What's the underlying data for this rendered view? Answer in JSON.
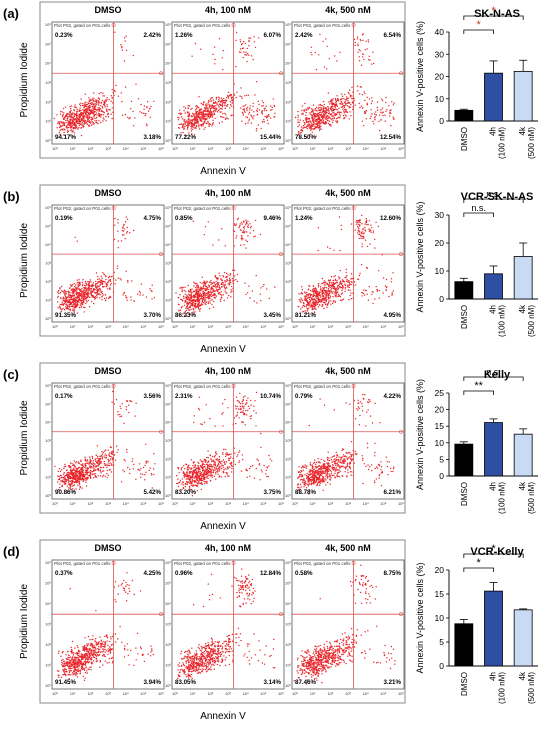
{
  "panels": [
    {
      "label": "(a)",
      "flow": {
        "ylabel": "Propidium Iodide",
        "xlabel": "Annexin V",
        "plot_caption": "Plot P02, gated on P01.cells",
        "plots": [
          {
            "title": "DMSO",
            "ul": "0.23%",
            "ur": "2.42%",
            "ll": "94.17%",
            "lr": "3.18%"
          },
          {
            "title": "4h, 100 nM",
            "ul": "1.26%",
            "ur": "6.07%",
            "ll": "77.22%",
            "lr": "15.44%"
          },
          {
            "title": "4k, 500 nM",
            "ul": "2.42%",
            "ur": "6.54%",
            "ll": "78.50%",
            "lr": "12.54%"
          }
        ]
      },
      "chart": {
        "type": "bar",
        "title": "SK-N-AS",
        "ylabel": "Annexin V-positive cells (%)",
        "ylim": [
          0,
          40
        ],
        "yticks": [
          0,
          10,
          20,
          30,
          40
        ],
        "categories": [
          {
            "line1": "DMSO",
            "line2": ""
          },
          {
            "line1": "4h",
            "line2": "(100 nM)"
          },
          {
            "line1": "4k",
            "line2": "(500 nM)"
          }
        ],
        "values": [
          4.8,
          21.5,
          22.3
        ],
        "errors": [
          0.5,
          5.5,
          5.0
        ],
        "colors": [
          "#000000",
          "#2e4fa3",
          "#c9daf4"
        ],
        "sig": [
          {
            "from": 0,
            "to": 2,
            "label": "*",
            "color": "#c0392b",
            "level": 1
          },
          {
            "from": 0,
            "to": 1,
            "label": "*",
            "color": "#c0392b",
            "level": 0
          }
        ]
      }
    },
    {
      "label": "(b)",
      "flow": {
        "ylabel": "Propidium Iodide",
        "xlabel": "Annexin V",
        "plot_caption": "Plot P02, gated on P01.cells",
        "plots": [
          {
            "title": "DMSO",
            "ul": "0.19%",
            "ur": "4.75%",
            "ll": "91.35%",
            "lr": "3.70%"
          },
          {
            "title": "4h, 100 nM",
            "ul": "0.85%",
            "ur": "9.46%",
            "ll": "86.23%",
            "lr": "3.45%"
          },
          {
            "title": "4k, 500 nM",
            "ul": "1.24%",
            "ur": "12.60%",
            "ll": "81.21%",
            "lr": "4.95%"
          }
        ]
      },
      "chart": {
        "type": "bar",
        "title": "VCR-SK-N-AS",
        "ylabel": "Annexin V-positive cells (%)",
        "ylim": [
          0,
          30
        ],
        "yticks": [
          0,
          10,
          20,
          30
        ],
        "categories": [
          {
            "line1": "DMSO",
            "line2": ""
          },
          {
            "line1": "4h",
            "line2": "(100 nM)"
          },
          {
            "line1": "4k",
            "line2": "(500 nM)"
          }
        ],
        "values": [
          6.2,
          9.0,
          15.2
        ],
        "errors": [
          1.2,
          2.8,
          4.8
        ],
        "colors": [
          "#000000",
          "#2e4fa3",
          "#c9daf4"
        ],
        "sig": [
          {
            "from": 0,
            "to": 2,
            "label": "n.s.",
            "color": "#000000",
            "level": 1
          },
          {
            "from": 0,
            "to": 1,
            "label": "n.s.",
            "color": "#000000",
            "level": 0
          }
        ]
      }
    },
    {
      "label": "(c)",
      "flow": {
        "ylabel": "Propidium Iodide",
        "xlabel": "Annexin V",
        "plot_caption": "Plot P02, gated on P01.cells",
        "plots": [
          {
            "title": "DMSO",
            "ul": "0.17%",
            "ur": "3.56%",
            "ll": "90.86%",
            "lr": "5.42%"
          },
          {
            "title": "4h, 100 nM",
            "ul": "2.31%",
            "ur": "10.74%",
            "ll": "83.20%",
            "lr": "3.75%"
          },
          {
            "title": "4k, 500 nM",
            "ul": "0.79%",
            "ur": "4.22%",
            "ll": "88.78%",
            "lr": "6.21%"
          }
        ]
      },
      "chart": {
        "type": "bar",
        "title": "Kelly",
        "ylabel": "Annexin V-positive cells (%)",
        "ylim": [
          0,
          25
        ],
        "yticks": [
          0,
          5,
          10,
          15,
          20,
          25
        ],
        "categories": [
          {
            "line1": "DMSO",
            "line2": ""
          },
          {
            "line1": "4h",
            "line2": "(100 nM)"
          },
          {
            "line1": "4k",
            "line2": "(500 nM)"
          }
        ],
        "values": [
          9.6,
          16.1,
          12.6
        ],
        "errors": [
          0.7,
          1.1,
          1.6
        ],
        "colors": [
          "#000000",
          "#2e4fa3",
          "#c9daf4"
        ],
        "sig": [
          {
            "from": 0,
            "to": 2,
            "label": "n.s.",
            "color": "#000000",
            "level": 1
          },
          {
            "from": 0,
            "to": 1,
            "label": "**",
            "color": "#000000",
            "level": 0
          }
        ]
      }
    },
    {
      "label": "(d)",
      "flow": {
        "ylabel": "Propidium Iodide",
        "xlabel": "Annexin V",
        "plot_caption": "Plot P02, gated on P01.cells",
        "plots": [
          {
            "title": "DMSO",
            "ul": "0.37%",
            "ur": "4.25%",
            "ll": "91.45%",
            "lr": "3.94%"
          },
          {
            "title": "4h, 100 nM",
            "ul": "0.96%",
            "ur": "12.84%",
            "ll": "83.05%",
            "lr": "3.14%"
          },
          {
            "title": "4k, 500 nM",
            "ul": "0.58%",
            "ur": "8.75%",
            "ll": "87.46%",
            "lr": "3.21%"
          }
        ]
      },
      "chart": {
        "type": "bar",
        "title": "VCR-Kelly",
        "ylabel": "Annexin V-positive cells (%)",
        "ylim": [
          0,
          20
        ],
        "yticks": [
          0,
          5,
          10,
          15,
          20
        ],
        "categories": [
          {
            "line1": "DMSO",
            "line2": ""
          },
          {
            "line1": "4h",
            "line2": "(100 nM)"
          },
          {
            "line1": "4k",
            "line2": "(500 nM)"
          }
        ],
        "values": [
          8.8,
          15.6,
          11.7
        ],
        "errors": [
          0.9,
          1.8,
          0.2
        ],
        "colors": [
          "#000000",
          "#2e4fa3",
          "#c9daf4"
        ],
        "sig": [
          {
            "from": 0,
            "to": 2,
            "label": "*",
            "color": "#000000",
            "level": 1
          },
          {
            "from": 0,
            "to": 1,
            "label": "*",
            "color": "#000000",
            "level": 0
          }
        ]
      }
    }
  ],
  "style": {
    "dot_color": "#e8262b",
    "gate_color": "#d9534f",
    "flow_tick_labels": [
      "10⁰",
      "10¹",
      "10²",
      "10³",
      "10⁴",
      "10⁵",
      "10⁶"
    ]
  },
  "chart_data": [
    {
      "type": "bar",
      "title": "SK-N-AS",
      "ylabel": "Annexin V-positive cells (%)",
      "categories": [
        "DMSO",
        "4h (100 nM)",
        "4k (500 nM)"
      ],
      "values": [
        4.8,
        21.5,
        22.3
      ],
      "ylim": [
        0,
        40
      ]
    },
    {
      "type": "bar",
      "title": "VCR-SK-N-AS",
      "ylabel": "Annexin V-positive cells (%)",
      "categories": [
        "DMSO",
        "4h (100 nM)",
        "4k (500 nM)"
      ],
      "values": [
        6.2,
        9.0,
        15.2
      ],
      "ylim": [
        0,
        30
      ]
    },
    {
      "type": "bar",
      "title": "Kelly",
      "ylabel": "Annexin V-positive cells (%)",
      "categories": [
        "DMSO",
        "4h (100 nM)",
        "4k (500 nM)"
      ],
      "values": [
        9.6,
        16.1,
        12.6
      ],
      "ylim": [
        0,
        25
      ]
    },
    {
      "type": "bar",
      "title": "VCR-Kelly",
      "ylabel": "Annexin V-positive cells (%)",
      "categories": [
        "DMSO",
        "4h (100 nM)",
        "4k (500 nM)"
      ],
      "values": [
        8.8,
        15.6,
        11.7
      ],
      "ylim": [
        0,
        20
      ]
    }
  ]
}
